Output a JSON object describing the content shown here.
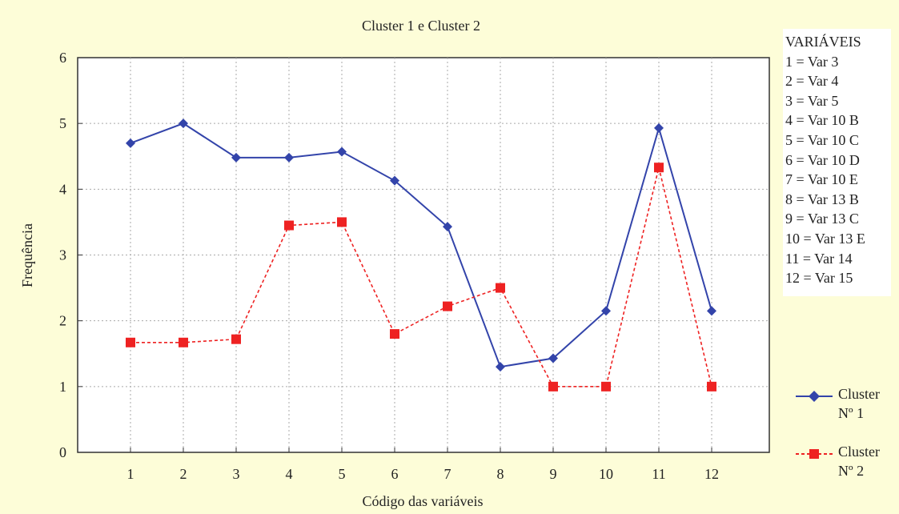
{
  "chart_data": {
    "type": "line",
    "title": "Cluster 1 e Cluster 2",
    "xlabel": "Código das variáveis",
    "ylabel": "Frequência",
    "categories": [
      "1",
      "2",
      "3",
      "4",
      "5",
      "6",
      "7",
      "8",
      "9",
      "10",
      "11",
      "12"
    ],
    "ylim": [
      0,
      6
    ],
    "yticks": [
      "0",
      "1",
      "2",
      "3",
      "4",
      "5",
      "6"
    ],
    "grid": true,
    "series": [
      {
        "name": "Cluster\nNº 1",
        "color": "#3344aa",
        "marker": "diamond",
        "style": "solid",
        "values": [
          4.7,
          5.0,
          4.48,
          4.48,
          4.57,
          4.13,
          3.43,
          1.3,
          1.43,
          2.15,
          4.93,
          2.15
        ]
      },
      {
        "name": "Cluster\nNº 2",
        "color": "#ee2222",
        "marker": "square",
        "style": "dashed",
        "values": [
          1.67,
          1.67,
          1.72,
          3.45,
          3.5,
          1.8,
          2.22,
          2.5,
          1.0,
          1.0,
          4.33,
          1.0
        ]
      }
    ],
    "legend_position": "right"
  },
  "variables_legend": {
    "header": "VARIÁVEIS",
    "items": [
      "1 = Var 3",
      "2 = Var 4",
      "3 = Var 5",
      "4 = Var 10 B",
      "5 = Var 10 C",
      "6 = Var 10 D",
      "7 = Var 10 E",
      "8 = Var 13 B",
      "9 = Var 13 C",
      "10 = Var 13 E",
      "11 = Var 14",
      "12 = Var 15"
    ]
  }
}
